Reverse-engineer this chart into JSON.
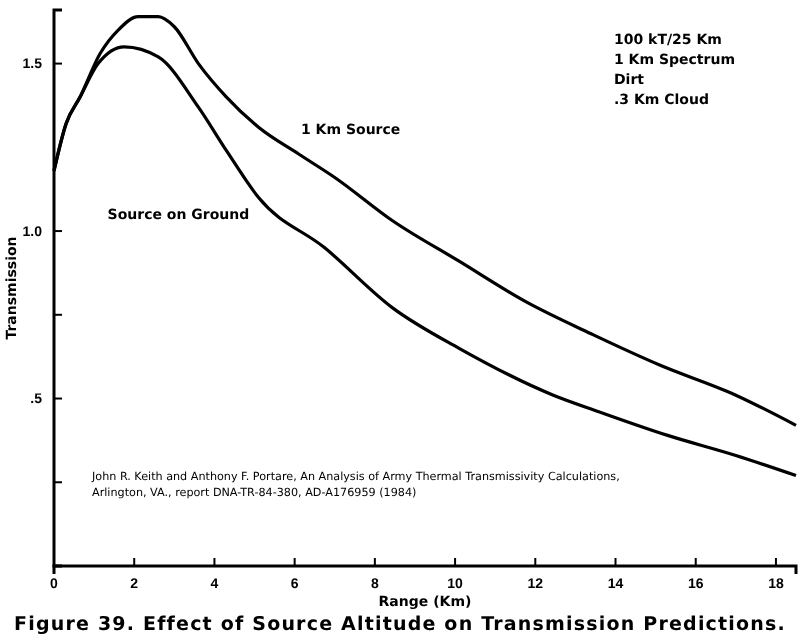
{
  "chart_data": {
    "type": "line",
    "title": "Figure 39. Effect of Source Altitude on Transmission Predictions.",
    "xlabel": "Range (Km)",
    "ylabel": "Transmission",
    "xlim": [
      0,
      18.5
    ],
    "xticks": [
      0,
      2,
      4,
      6,
      8,
      10,
      12,
      14,
      16,
      18
    ],
    "ylim": [
      0,
      1.66
    ],
    "yticks": [
      {
        "value": 0.25,
        "label": null
      },
      {
        "value": 0.5,
        "label": ".5"
      },
      {
        "value": 0.75,
        "label": null
      },
      {
        "value": 1.0,
        "label": "1.0"
      },
      {
        "value": 1.5,
        "label": "1.5"
      }
    ],
    "grid": false,
    "legend": false,
    "marker": "none",
    "line_style": "solid",
    "series": [
      {
        "name": "1 Km Source",
        "color": "#000000",
        "x": [
          0,
          0.3,
          0.65,
          1.15,
          1.6,
          2.1,
          2.6,
          3.0,
          3.6,
          4.3,
          5.1,
          6.1,
          7.0,
          8.45,
          10.1,
          11.75,
          13.45,
          15.1,
          17.0,
          18.5
        ],
        "values": [
          1.18,
          1.32,
          1.4,
          1.53,
          1.6,
          1.64,
          1.64,
          1.61,
          1.5,
          1.4,
          1.31,
          1.23,
          1.16,
          1.03,
          0.91,
          0.79,
          0.69,
          0.6,
          0.51,
          0.42
        ]
      },
      {
        "name": "Source on Ground",
        "color": "#000000",
        "x": [
          0,
          0.3,
          0.65,
          1.1,
          1.75,
          2.6,
          3.6,
          4.3,
          5.1,
          6.75,
          8.45,
          10.1,
          12.45,
          13.6,
          15.3,
          17.0,
          18.5
        ],
        "values": [
          1.18,
          1.32,
          1.4,
          1.5,
          1.55,
          1.52,
          1.37,
          1.24,
          1.1,
          0.95,
          0.77,
          0.65,
          0.51,
          0.46,
          0.39,
          0.33,
          0.27
        ]
      }
    ],
    "annotations": [
      "100 kT/25 Km\n1 Km Spectrum\nDirt\n.3 Km Cloud",
      "John R. Keith and Anthony F. Portare, An Analysis of Army Thermal Transmissivity Calculations,\nArlington, VA., report DNA-TR-84-380, AD-A176959 (1984)"
    ]
  }
}
